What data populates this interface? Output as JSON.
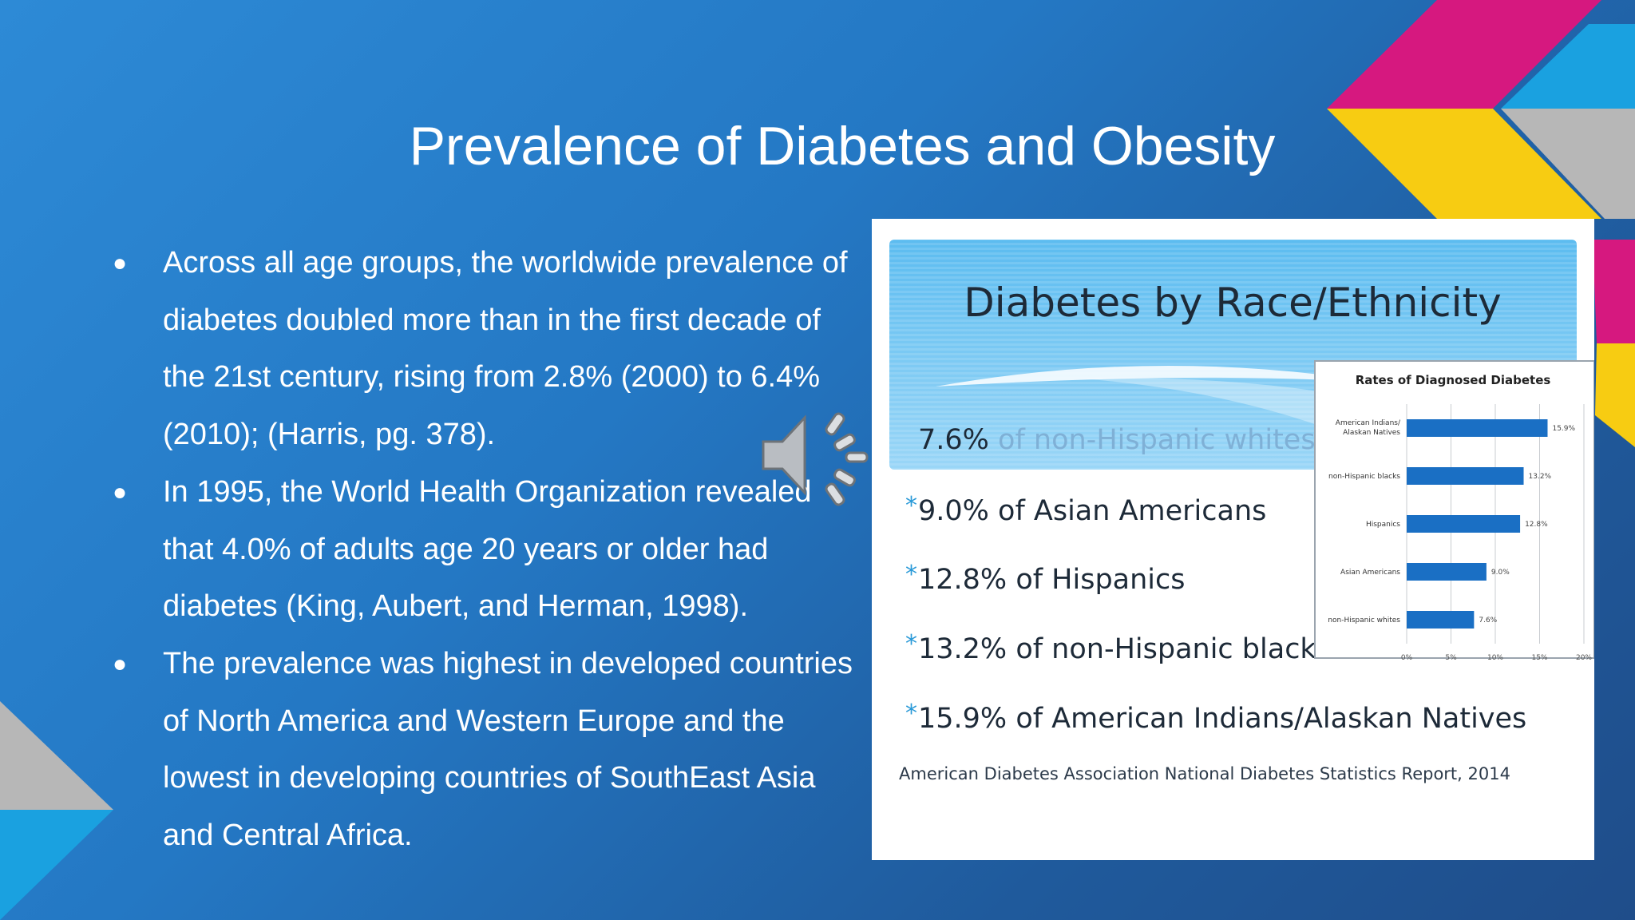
{
  "slide": {
    "title": "Prevalence of Diabetes and Obesity",
    "bullets": [
      "Across all age groups, the worldwide prevalence of diabetes doubled more than in the first decade of the 21st century, rising from 2.8% (2000) to 6.4% (2010); (Harris, pg. 378).",
      "In 1995, the World Health Organization revealed that 4.0% of adults age 20 years or older had diabetes (King, Aubert, and Herman, 1998).",
      "The prevalence was highest in developed countries of North America and Western Europe and the lowest in developing countries of SouthEast Asia and Central Africa."
    ],
    "bullet_symbol": "●"
  },
  "figure": {
    "heading": "Diabetes by Race/Ethnicity",
    "stat_pct": [
      "7.6%",
      "9.0%",
      "12.8%",
      "13.2%",
      "15.9%"
    ],
    "stat_text": [
      "of non-Hispanic whites",
      "of Asian Americans",
      "of Hispanics",
      "of non-Hispanic blacks",
      "of American Indians/Alaskan Natives"
    ],
    "source": "American Diabetes Association National Diabetes Statistics Report, 2014",
    "star_symbol": "*"
  },
  "chart_data": {
    "type": "bar",
    "orientation": "horizontal",
    "title": "Rates of Diagnosed Diabetes",
    "categories": [
      "American Indians/ Alaskan Natives",
      "non-Hispanic blacks",
      "Hispanics",
      "Asian Americans",
      "non-Hispanic whites"
    ],
    "values": [
      15.9,
      13.2,
      12.8,
      9.0,
      7.6
    ],
    "value_labels": [
      "15.9%",
      "13.2%",
      "12.8%",
      "9.0%",
      "7.6%"
    ],
    "ticks": [
      "0%",
      "5%",
      "10%",
      "15%",
      "20%"
    ],
    "xlim": [
      0,
      20
    ],
    "grid": true,
    "bar_color": "#1a6fc4"
  },
  "colors": {
    "accent_pink": "#d6187f",
    "accent_yellow": "#f7cc12",
    "accent_cyan": "#1aa1e0",
    "accent_gray": "#b7b7b7"
  },
  "icons": {
    "speaker": "speaker-icon"
  }
}
